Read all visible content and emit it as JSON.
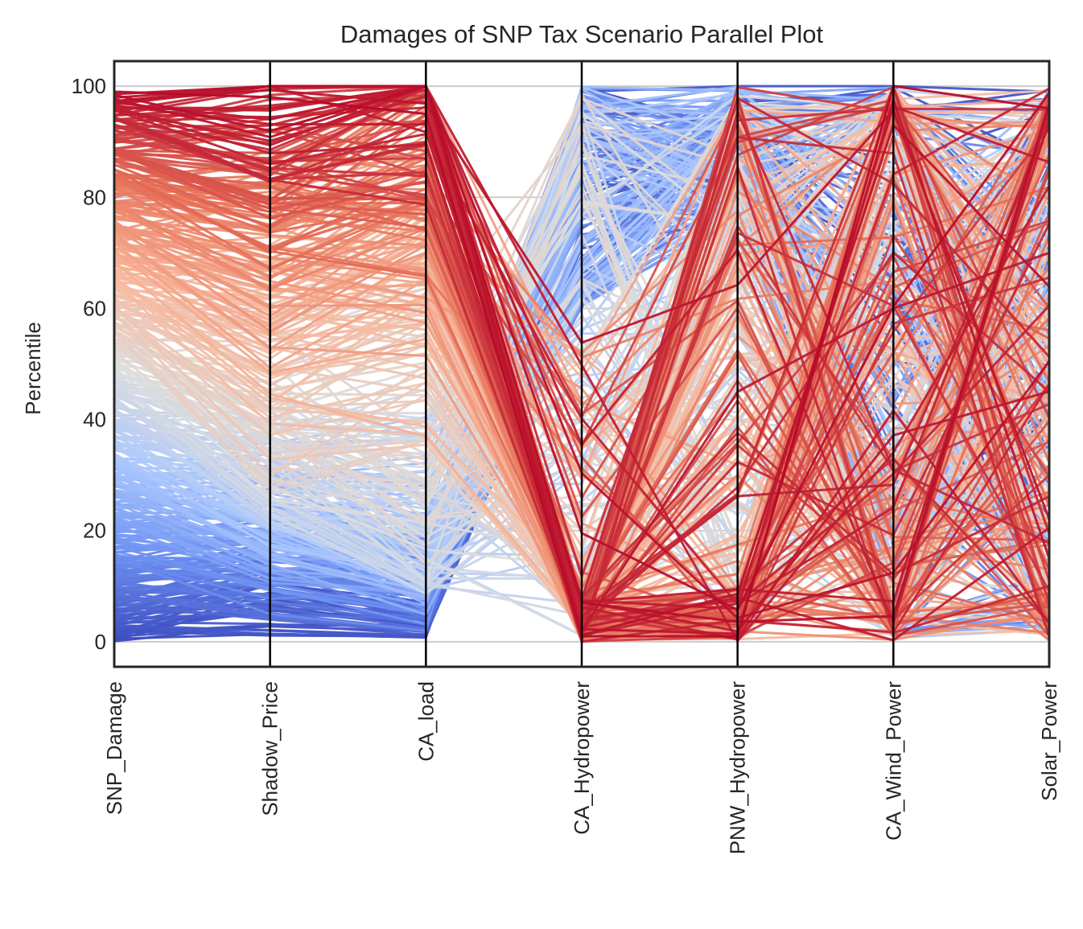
{
  "chart_data": {
    "type": "parallel_coordinates",
    "title": "Damages of SNP Tax Scenario Parallel Plot",
    "ylabel": "Percentile",
    "xlabel": "",
    "ylim": [
      -4.5,
      104.5
    ],
    "yticks": [
      0,
      20,
      40,
      60,
      80,
      100
    ],
    "axes": [
      "SNP_Damage",
      "Shadow_Price",
      "CA_load",
      "CA_Hydropower",
      "PNW_Hydropower",
      "CA_Wind_Power",
      "Solar_Power"
    ],
    "color_by": "SNP_Damage",
    "colormap": "coolwarm",
    "colormap_stops": [
      "#3b4cc0",
      "#6f92f3",
      "#aac7fd",
      "#dddddd",
      "#f7b89c",
      "#e7745b",
      "#b40426"
    ],
    "grid": true,
    "legend": "none",
    "sample_lines": [
      {
        "values": [
          99,
          98,
          95,
          1,
          1,
          100,
          96
        ]
      },
      {
        "values": [
          97,
          94,
          100,
          2,
          45,
          60,
          70
        ]
      },
      {
        "values": [
          92,
          86,
          90,
          0,
          98,
          4,
          30
        ]
      },
      {
        "values": [
          85,
          70,
          84,
          1,
          8,
          99,
          2
        ]
      },
      {
        "values": [
          75,
          60,
          70,
          10,
          55,
          32,
          88
        ]
      },
      {
        "values": [
          60,
          45,
          52,
          30,
          70,
          48,
          20
        ]
      },
      {
        "values": [
          45,
          28,
          20,
          78,
          96,
          12,
          9
        ]
      },
      {
        "values": [
          30,
          15,
          8,
          92,
          99,
          95,
          40
        ]
      },
      {
        "values": [
          15,
          5,
          2,
          97,
          96,
          98,
          55
        ]
      },
      {
        "values": [
          3,
          2,
          1,
          99,
          100,
          100,
          99
        ]
      }
    ]
  }
}
